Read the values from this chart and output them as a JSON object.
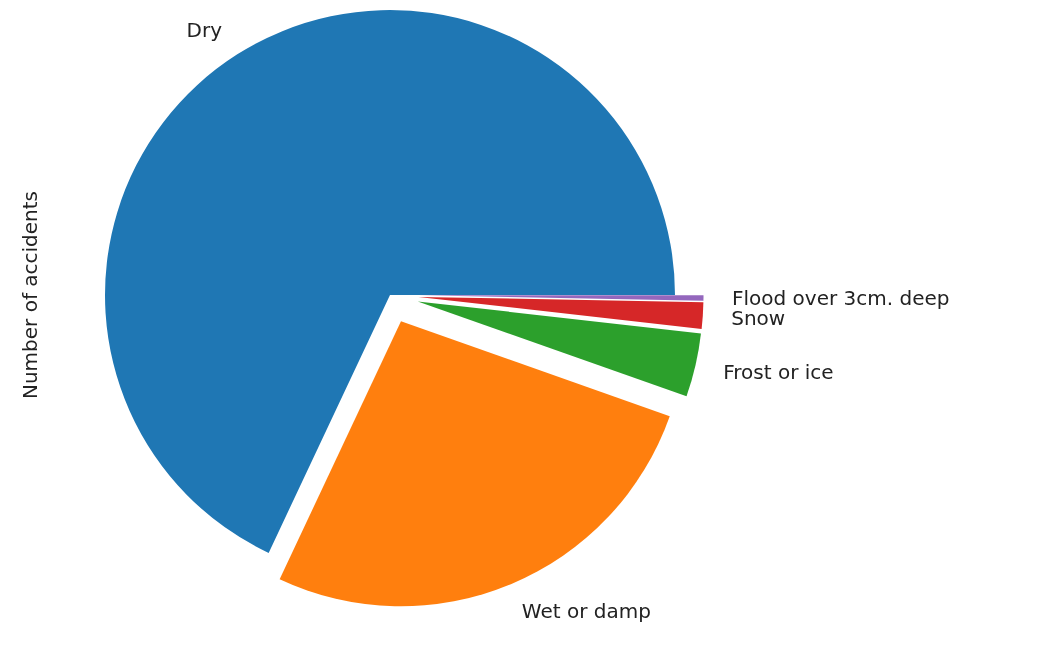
{
  "chart_data": {
    "type": "pie",
    "ylabel": "Number of accidents",
    "categories": [
      "Dry",
      "Wet or damp",
      "Frost or ice",
      "Snow",
      "Flood over 3cm. deep"
    ],
    "values": [
      68.0,
      26.6,
      3.6,
      1.5,
      0.3
    ],
    "colors": [
      "#1f77b4",
      "#ff7f0e",
      "#2ca02c",
      "#d62728",
      "#9467bd"
    ]
  }
}
